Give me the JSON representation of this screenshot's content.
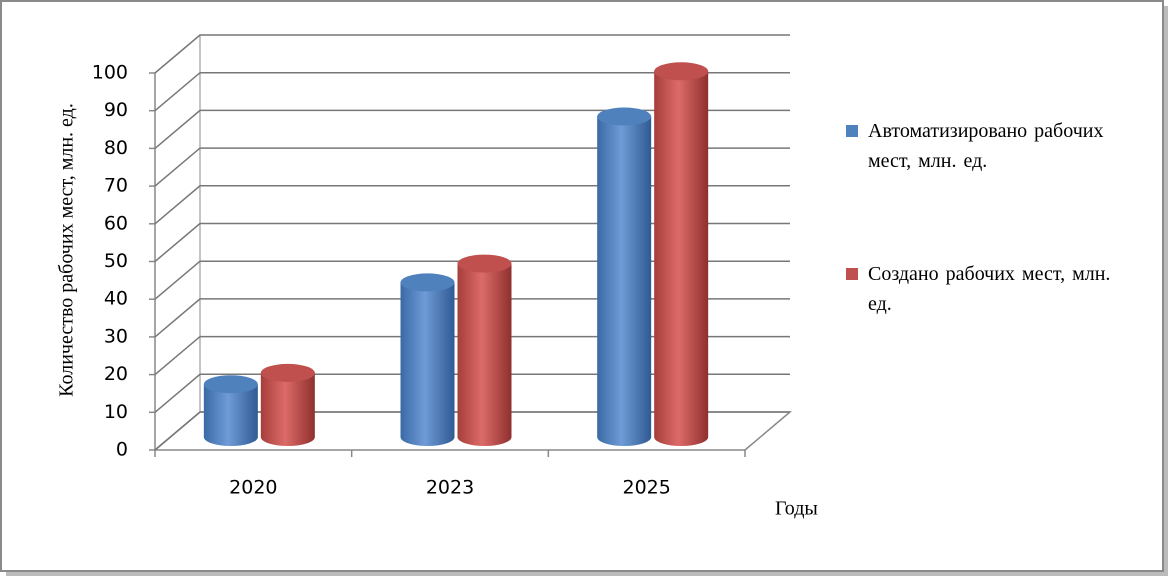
{
  "chart_data": {
    "type": "bar3d",
    "categories": [
      "2020",
      "2023",
      "2025"
    ],
    "series": [
      {
        "name": "Автоматизировано рабочих мест, млн. ед.",
        "color": "#4f81bd",
        "values": [
          14,
          41,
          85
        ]
      },
      {
        "name": "Создано рабочих мест, млн. ед.",
        "color": "#c0504d",
        "values": [
          17,
          46,
          97
        ]
      }
    ],
    "y_label": "Количество рабочих мест, млн. ед.",
    "x_label": "Годы",
    "ylim": [
      0,
      100
    ],
    "yticks": [
      0,
      10,
      20,
      30,
      40,
      50,
      60,
      70,
      80,
      90,
      100
    ],
    "grid": true,
    "legend": "right"
  }
}
